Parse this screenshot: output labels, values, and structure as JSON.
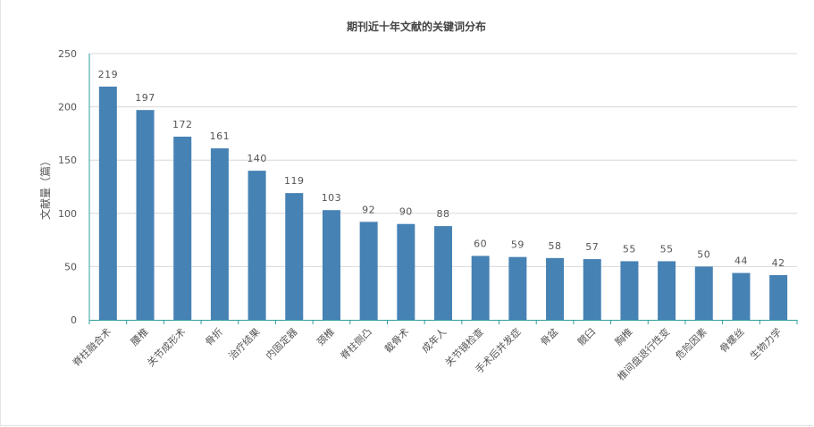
{
  "chart_data": {
    "type": "bar",
    "title": "期刊近十年文献的关键词分布",
    "ylabel": "文献量（篇）",
    "xlabel": "",
    "ylim": [
      0,
      250
    ],
    "yticks": [
      0,
      50,
      100,
      150,
      200,
      250
    ],
    "grid": true,
    "bar_color": "#4682b4",
    "axis_color": "#2f9c9c",
    "categories": [
      "脊柱融合术",
      "腰椎",
      "关节成形术",
      "骨折",
      "治疗结果",
      "内固定器",
      "颈椎",
      "脊柱侧凸",
      "截骨术",
      "成年人",
      "关节镜检查",
      "手术后并发症",
      "骨盆",
      "髋臼",
      "胸椎",
      "椎间盘退行性变",
      "危险因素",
      "骨螺丝",
      "生物力学"
    ],
    "values": [
      219,
      197,
      172,
      161,
      140,
      119,
      103,
      92,
      90,
      88,
      60,
      59,
      58,
      57,
      55,
      55,
      50,
      44,
      42
    ]
  }
}
